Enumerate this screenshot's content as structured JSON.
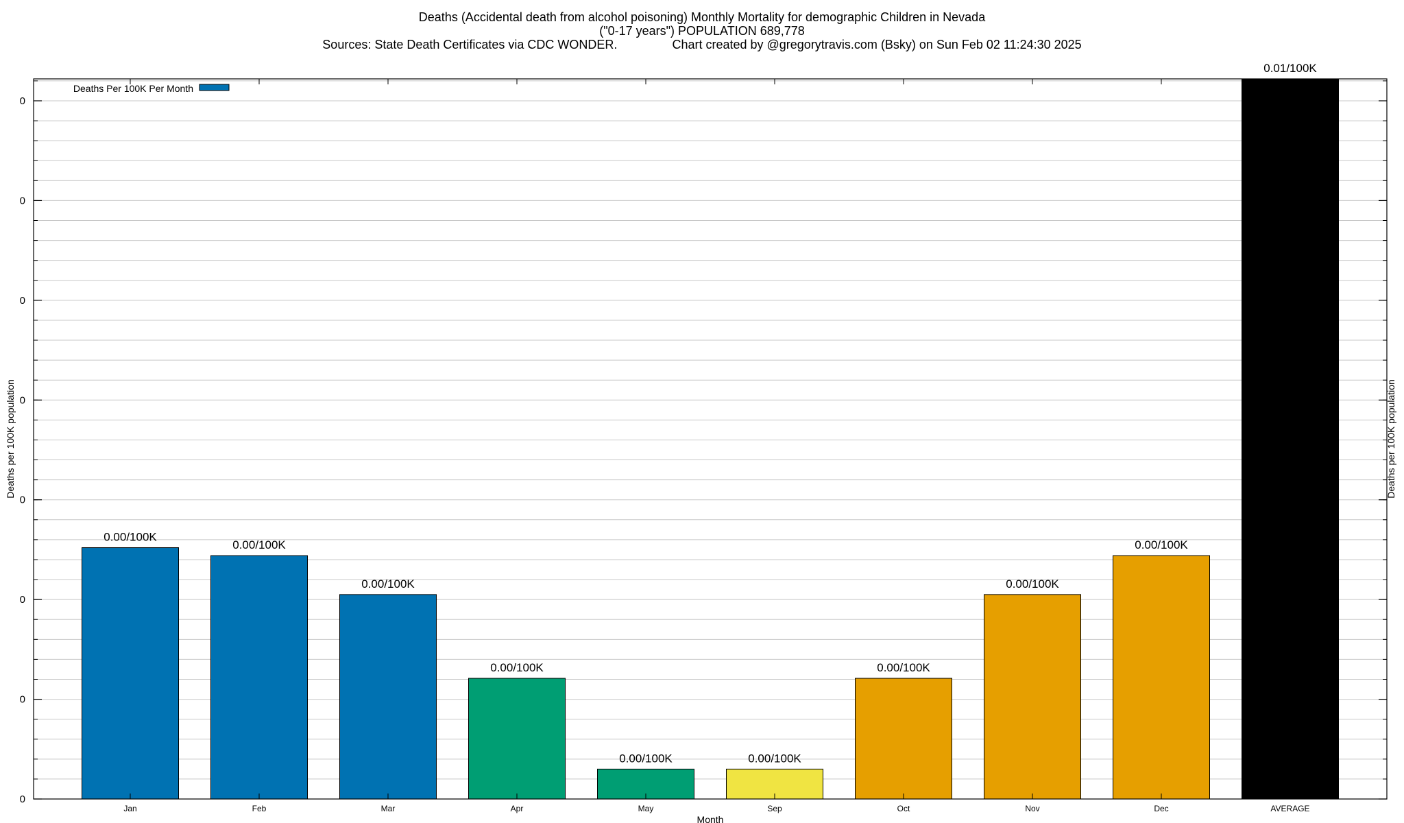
{
  "title": {
    "line1": "Deaths (Accidental death from alcohol poisoning) Monthly Mortality for demographic Children in Nevada",
    "line2": "(\"0-17 years\") POPULATION 689,778",
    "line3": "Sources: State Death Certificates via CDC WONDER.                Chart created by @gregorytravis.com (Bsky) on Sun Feb 02 11:24:30 2025"
  },
  "chart_data": {
    "type": "bar",
    "categories": [
      "Jan",
      "Feb",
      "Mar",
      "Apr",
      "May",
      "Sep",
      "Oct",
      "Nov",
      "Dec",
      "AVERAGE"
    ],
    "values": [
      0.00252,
      0.00244,
      0.00205,
      0.00121,
      0.0003,
      0.0003,
      0.00121,
      0.00205,
      0.00244,
      0.00722
    ],
    "bar_labels": [
      "0.00/100K",
      "0.00/100K",
      "0.00/100K",
      "0.00/100K",
      "0.00/100K",
      "0.00/100K",
      "0.00/100K",
      "0.00/100K",
      "0.00/100K",
      "0.01/100K"
    ],
    "bar_colors": [
      "#0072b2",
      "#0072b2",
      "#0072b2",
      "#009e73",
      "#009e73",
      "#f0e442",
      "#e69f00",
      "#e69f00",
      "#e69f00",
      "#000000"
    ],
    "ylim": [
      0,
      0.00722
    ],
    "y_ticks": [
      0,
      0.001,
      0.002,
      0.003,
      0.004,
      0.005,
      0.006,
      0.007
    ],
    "y_tick_labels": [
      "0",
      "0",
      "0",
      "0",
      "0",
      "0",
      "0",
      "0"
    ],
    "y_minor_step": 0.0002,
    "xlabel": "Month",
    "ylabel": "Deaths per 100K population",
    "y2label": "Deaths per 100K population",
    "legend": {
      "label": "Deaths Per 100K Per Month",
      "color": "#0072b2",
      "position": "top-left"
    },
    "grid": true
  }
}
